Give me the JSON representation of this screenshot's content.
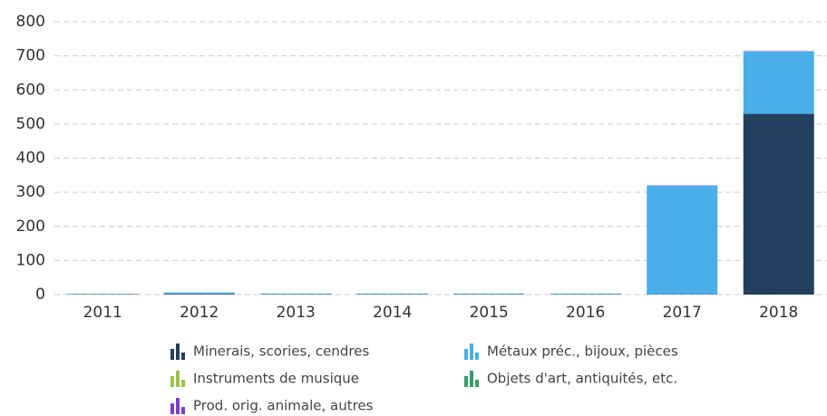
{
  "chart_data": {
    "type": "stacked_bar",
    "categories": [
      "2011",
      "2012",
      "2013",
      "2014",
      "2015",
      "2016",
      "2017",
      "2018"
    ],
    "series": [
      {
        "name": "Minerais, scories, cendres",
        "color": "#223f5e",
        "values": [
          1,
          2,
          1,
          1,
          1,
          1,
          1,
          530
        ]
      },
      {
        "name": "Métaux préc., bijoux, pièces",
        "color": "#4aaee8",
        "values": [
          1,
          4,
          2,
          2,
          2,
          2,
          318,
          183
        ]
      },
      {
        "name": "Instruments de musique",
        "color": "#9bc34a",
        "values": [
          0,
          0,
          0,
          0,
          0,
          0,
          0,
          0
        ]
      },
      {
        "name": "Objets d'art, antiquités, etc.",
        "color": "#3a9a6a",
        "values": [
          0,
          0,
          0,
          0,
          0,
          0,
          0,
          0
        ]
      },
      {
        "name": "Prod. orig. animale, autres",
        "color": "#7b3fd0",
        "values": [
          0,
          0,
          0,
          0,
          0,
          0,
          1,
          1
        ]
      }
    ],
    "ylim": [
      0,
      800
    ],
    "yticks": [
      0,
      100,
      200,
      300,
      400,
      500,
      600,
      700,
      800
    ],
    "grid": true
  }
}
